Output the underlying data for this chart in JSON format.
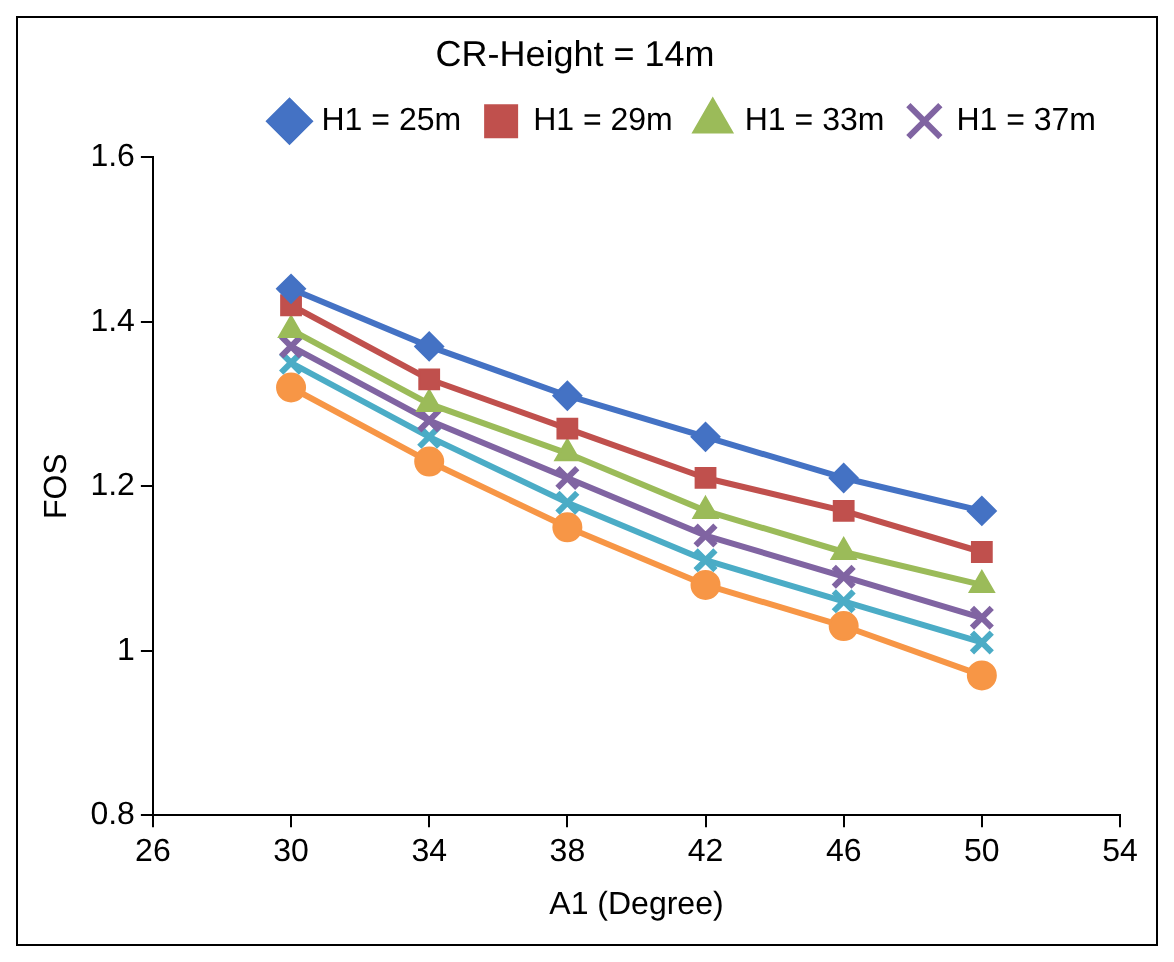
{
  "chart_data": {
    "type": "line",
    "title": "CR-Height = 14m",
    "xlabel": "A1 (Degree)",
    "ylabel": "FOS",
    "x": [
      30,
      34,
      38,
      42,
      46,
      50
    ],
    "xlim": [
      26,
      54
    ],
    "xticks": [
      26,
      30,
      34,
      38,
      42,
      46,
      50,
      54
    ],
    "ylim": [
      0.8,
      1.6
    ],
    "yticks": [
      0.8,
      1,
      1.2,
      1.4,
      1.6
    ],
    "grid": false,
    "legend": "top right",
    "series": [
      {
        "name": "H1 = 25m",
        "color": "#4472c4",
        "marker": "diamond",
        "values": [
          1.44,
          1.37,
          1.31,
          1.26,
          1.21,
          1.17
        ]
      },
      {
        "name": "H1 = 29m",
        "color": "#c0504d",
        "marker": "square",
        "values": [
          1.42,
          1.33,
          1.27,
          1.21,
          1.17,
          1.12
        ]
      },
      {
        "name": "H1 = 33m",
        "color": "#9bbb59",
        "marker": "triangle",
        "values": [
          1.39,
          1.3,
          1.24,
          1.17,
          1.12,
          1.08
        ]
      },
      {
        "name": "H1 = 37m",
        "color": "#8064a2",
        "marker": "cross",
        "values": [
          1.37,
          1.28,
          1.21,
          1.14,
          1.09,
          1.04
        ]
      },
      {
        "color": "#4bacc6",
        "marker": "cross",
        "values": [
          1.35,
          1.26,
          1.18,
          1.11,
          1.06,
          1.01
        ]
      },
      {
        "color": "#f79646",
        "marker": "circle",
        "values": [
          1.32,
          1.23,
          1.15,
          1.08,
          1.03,
          0.97
        ]
      }
    ]
  }
}
